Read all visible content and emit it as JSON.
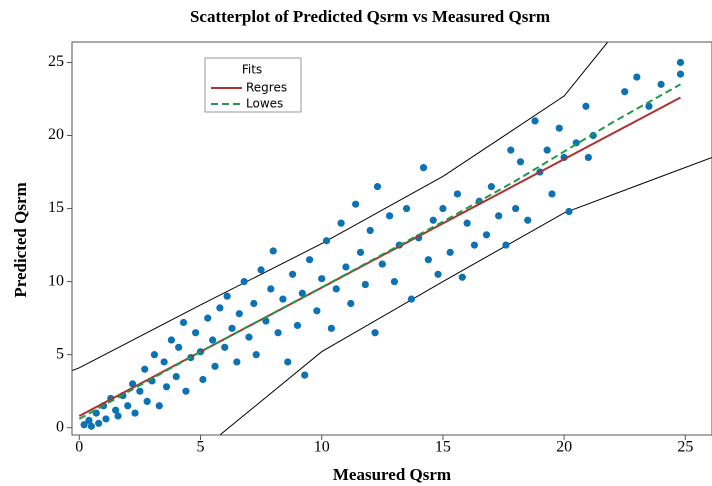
{
  "chart_data": {
    "type": "scatter",
    "title": "Scatterplot of Predicted Qsrm vs Measured Qsrm",
    "xlabel": "Measured Qsrm",
    "ylabel": "Predicted Qsrm",
    "xlim": [
      -0.3,
      26.1
    ],
    "ylim": [
      -0.5,
      26.4
    ],
    "xticks": [
      0,
      5,
      10,
      15,
      20,
      25
    ],
    "yticks": [
      0,
      5,
      10,
      15,
      20,
      25
    ],
    "legend_title": "Fits",
    "points": {
      "color": "#0b72b5",
      "x": [
        0.2,
        0.4,
        0.5,
        0.7,
        0.8,
        1.0,
        1.1,
        1.3,
        1.5,
        1.6,
        1.8,
        2.0,
        2.2,
        2.3,
        2.5,
        2.7,
        2.8,
        3.0,
        3.1,
        3.3,
        3.5,
        3.6,
        3.8,
        4.0,
        4.1,
        4.3,
        4.4,
        4.6,
        4.8,
        5.0,
        5.1,
        5.3,
        5.5,
        5.6,
        5.8,
        6.0,
        6.1,
        6.3,
        6.5,
        6.6,
        6.8,
        7.0,
        7.2,
        7.3,
        7.5,
        7.7,
        7.9,
        8.0,
        8.2,
        8.4,
        8.6,
        8.8,
        9.0,
        9.2,
        9.3,
        9.5,
        9.8,
        10.0,
        10.2,
        10.4,
        10.6,
        10.8,
        11.0,
        11.2,
        11.4,
        11.6,
        11.8,
        12.0,
        12.2,
        12.3,
        12.5,
        12.8,
        13.0,
        13.2,
        13.5,
        13.7,
        14.0,
        14.2,
        14.4,
        14.6,
        14.8,
        15.0,
        15.3,
        15.6,
        15.8,
        16.0,
        16.3,
        16.5,
        16.8,
        17.0,
        17.3,
        17.6,
        17.8,
        18.0,
        18.2,
        18.5,
        18.8,
        19.0,
        19.3,
        19.5,
        19.8,
        20.0,
        20.2,
        20.5,
        20.9,
        21.0,
        21.2,
        22.5,
        23.0,
        23.5,
        24.0,
        24.8,
        24.8
      ],
      "y": [
        0.2,
        0.5,
        0.1,
        1.0,
        0.3,
        1.5,
        0.6,
        2.0,
        1.2,
        0.8,
        2.2,
        1.5,
        3.0,
        1.0,
        2.5,
        4.0,
        1.8,
        3.2,
        5.0,
        1.5,
        4.5,
        2.8,
        6.0,
        3.5,
        5.5,
        7.2,
        2.5,
        4.8,
        6.5,
        5.2,
        3.3,
        7.5,
        6.0,
        4.2,
        8.2,
        5.5,
        9.0,
        6.8,
        4.5,
        7.8,
        10.0,
        6.2,
        8.5,
        5.0,
        10.8,
        7.3,
        9.5,
        12.1,
        6.5,
        8.8,
        4.5,
        10.5,
        7.0,
        9.2,
        3.6,
        11.5,
        8.0,
        10.2,
        12.8,
        6.8,
        9.5,
        14.0,
        11.0,
        8.5,
        15.3,
        12.0,
        9.8,
        13.5,
        6.5,
        16.5,
        11.2,
        14.5,
        10.0,
        12.5,
        15.0,
        8.8,
        13.0,
        17.8,
        11.5,
        14.2,
        10.5,
        15.0,
        12.0,
        16.0,
        10.3,
        14.0,
        12.5,
        15.5,
        13.2,
        16.5,
        14.5,
        12.5,
        19.0,
        15.0,
        18.2,
        14.2,
        21.0,
        17.5,
        19.0,
        16.0,
        20.5,
        18.5,
        14.8,
        19.5,
        22.0,
        18.5,
        20.0,
        23.0,
        24.0,
        22.0,
        23.5,
        25.0,
        24.2
      ]
    },
    "lines": [
      {
        "name": "Regres",
        "color": "#b03030",
        "dashed": false,
        "x": [
          0,
          24.8
        ],
        "y": [
          0.8,
          22.6
        ]
      },
      {
        "name": "Lowes",
        "color": "#1e9a4a",
        "dashed": true,
        "x": [
          0,
          5,
          10,
          15,
          18,
          20,
          22,
          24.8
        ],
        "y": [
          0.6,
          5.2,
          9.6,
          14.1,
          16.9,
          18.9,
          20.9,
          23.5
        ]
      }
    ],
    "bands": [
      {
        "color": "#000000",
        "x": [
          -0.3,
          0,
          5,
          10,
          15,
          20,
          21.8
        ],
        "y": [
          3.9,
          4.1,
          8.4,
          12.6,
          17.2,
          22.7,
          26.4
        ]
      },
      {
        "color": "#000000",
        "x": [
          5.8,
          10,
          15,
          20,
          26.1
        ],
        "y": [
          -0.5,
          5.2,
          10.0,
          14.7,
          18.5
        ]
      }
    ]
  }
}
